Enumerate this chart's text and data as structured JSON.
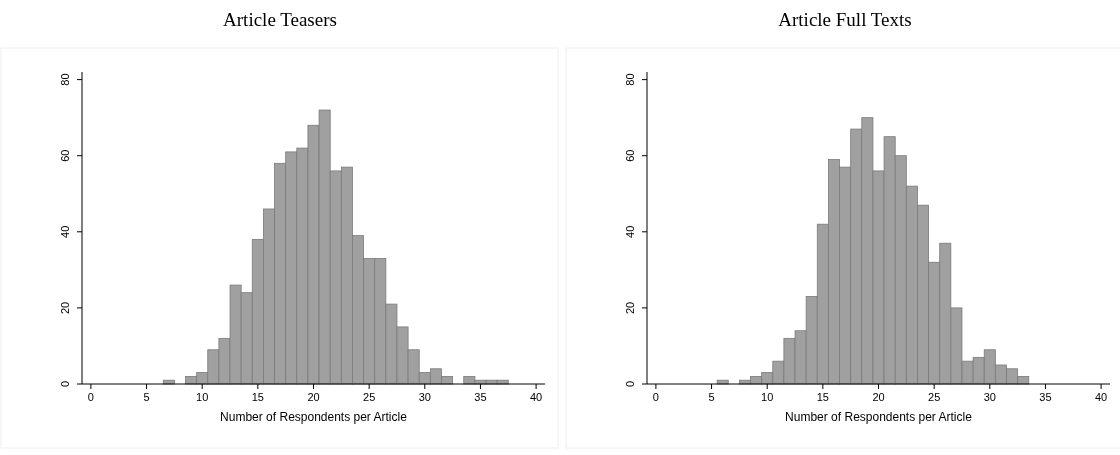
{
  "chart_data": [
    {
      "type": "histogram",
      "title": "Article Teasers",
      "xlabel": "Number of Respondents per Article",
      "color": "#a0a0a0",
      "bins": [
        6.5,
        7.5,
        8.5,
        9.5,
        10.5,
        11.5,
        12.5,
        13.5,
        14.5,
        15.5,
        16.5,
        17.5,
        18.5,
        19.5,
        20.5,
        21.5,
        22.5,
        23.5,
        24.5,
        25.5,
        26.5,
        27.5,
        28.5,
        29.5,
        30.5,
        31.5,
        32.5,
        33.5,
        34.5,
        35.5,
        36.5,
        37.5
      ],
      "values": [
        1,
        0,
        2,
        3,
        9,
        12,
        26,
        24,
        38,
        46,
        58,
        61,
        62,
        68,
        72,
        56,
        57,
        39,
        33,
        33,
        21,
        15,
        9,
        3,
        4,
        2,
        0,
        2,
        1,
        1,
        1
      ],
      "xlim": [
        -0.8,
        40.8
      ],
      "xticks": [
        0,
        5,
        10,
        15,
        20,
        25,
        30,
        35,
        40
      ],
      "ylim": [
        0,
        82
      ],
      "yticks": [
        0,
        20,
        40,
        60,
        80
      ]
    },
    {
      "type": "histogram",
      "title": "Article Full Texts",
      "xlabel": "Number of Respondents per Article",
      "color": "#a0a0a0",
      "bins": [
        5.5,
        6.5,
        7.5,
        8.5,
        9.5,
        10.5,
        11.5,
        12.5,
        13.5,
        14.5,
        15.5,
        16.5,
        17.5,
        18.5,
        19.5,
        20.5,
        21.5,
        22.5,
        23.5,
        24.5,
        25.5,
        26.5,
        27.5,
        28.5,
        29.5,
        30.5,
        31.5,
        32.5,
        33.5
      ],
      "values": [
        1,
        0,
        1,
        2,
        3,
        6,
        12,
        14,
        23,
        42,
        59,
        57,
        67,
        70,
        56,
        65,
        60,
        52,
        47,
        32,
        37,
        20,
        6,
        7,
        9,
        5,
        4,
        2
      ],
      "xlim": [
        -0.8,
        40.8
      ],
      "xticks": [
        0,
        5,
        10,
        15,
        20,
        25,
        30,
        35,
        40
      ],
      "ylim": [
        0,
        82
      ],
      "yticks": [
        0,
        20,
        40,
        60,
        80
      ]
    }
  ]
}
